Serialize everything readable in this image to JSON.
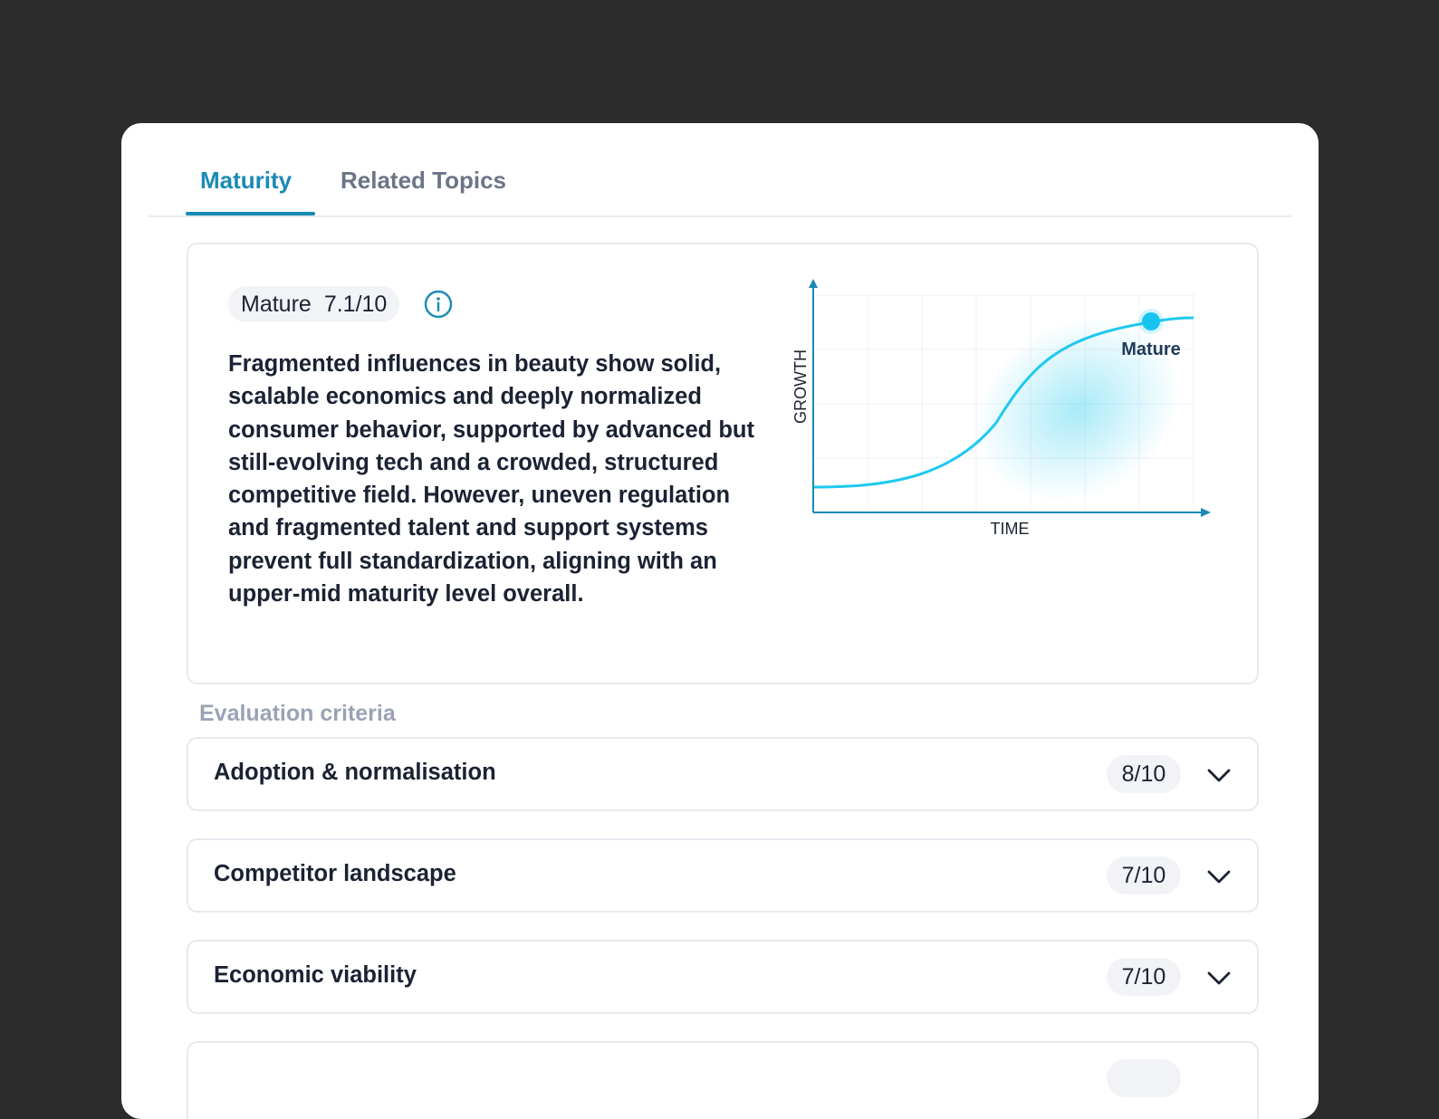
{
  "tabs": [
    {
      "label": "Maturity",
      "active": true
    },
    {
      "label": "Related Topics",
      "active": false
    }
  ],
  "summary": {
    "stage": "Mature",
    "score": "7.1/10",
    "description": "Fragmented influences in beauty show solid, scalable economics and deeply normalized consumer behavior, supported by advanced but still-evolving tech and a crowded, structured competitive field. However, uneven regulation and fragmented talent and support systems prevent full standardization, aligning with an upper-mid maturity level overall."
  },
  "chart_data": {
    "type": "line",
    "xlabel": "TIME",
    "ylabel": "GROWTH",
    "curve": "s-curve",
    "marker_label": "Mature",
    "marker_position": "upper plateau",
    "grid": true,
    "colors": {
      "line": "#1ec9ef",
      "axis": "#1a8ab5",
      "marker": "#19c3f0"
    }
  },
  "criteria": {
    "heading": "Evaluation criteria",
    "items": [
      {
        "label": "Adoption & normalisation",
        "score": "8/10"
      },
      {
        "label": "Competitor landscape",
        "score": "7/10"
      },
      {
        "label": "Economic viability",
        "score": "7/10"
      }
    ]
  },
  "colors": {
    "accent": "#1a8ab5",
    "background": "#2c2c2c",
    "panel": "#ffffff"
  },
  "icons": [
    "info-icon",
    "chevron-down-icon"
  ]
}
